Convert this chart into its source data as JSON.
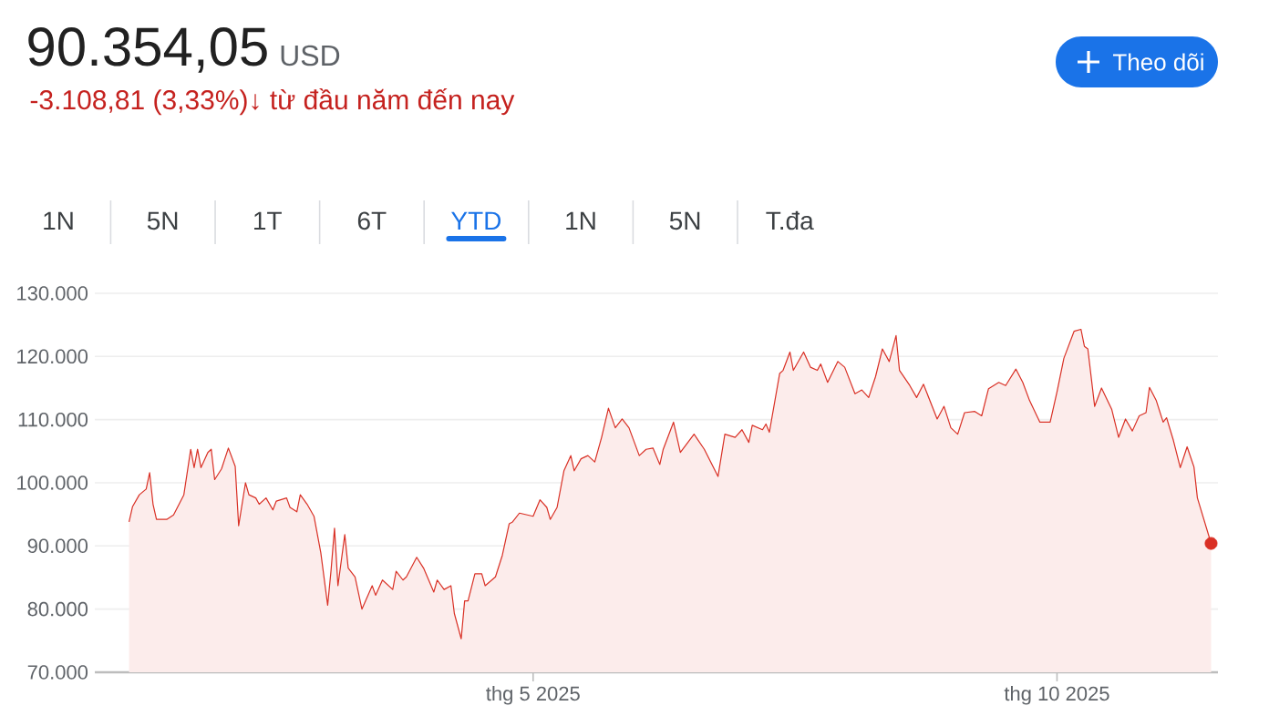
{
  "chart_data": {
    "type": "area",
    "title": "90.354,05",
    "subtitle": "USD",
    "annotations": [
      "-3.108,81 (3,33%)↓ từ đầu năm đến nay",
      "Theo dõi",
      "1N",
      "5N",
      "1T",
      "6T",
      "YTD",
      "1N",
      "5N",
      "T.đa"
    ],
    "xlim": [
      "2024-12-24",
      "2025-11-17"
    ],
    "xticks": [
      {
        "value": "2025-05-01",
        "label": "thg 5 2025"
      },
      {
        "value": "2025-10-01",
        "label": "thg 10 2025"
      }
    ],
    "ylim": [
      70000,
      130000
    ],
    "yticks": [
      {
        "value": 70000,
        "label": "70.000"
      },
      {
        "value": 80000,
        "label": "80.000"
      },
      {
        "value": 90000,
        "label": "90.000"
      },
      {
        "value": 100000,
        "label": "100.000"
      },
      {
        "value": 110000,
        "label": "110.000"
      },
      {
        "value": 120000,
        "label": "120.000"
      },
      {
        "value": 130000,
        "label": "130.000"
      }
    ],
    "grid": "y",
    "series": [
      {
        "color": "#d93025",
        "x": [
          "2025-01-03",
          "2025-01-04",
          "2025-01-06",
          "2025-01-08",
          "2025-01-09",
          "2025-01-10",
          "2025-01-11",
          "2025-01-14",
          "2025-01-16",
          "2025-01-19",
          "2025-01-21",
          "2025-01-22",
          "2025-01-23",
          "2025-01-24",
          "2025-01-26",
          "2025-01-27",
          "2025-01-28",
          "2025-01-30",
          "2025-02-01",
          "2025-02-03",
          "2025-02-04",
          "2025-02-06",
          "2025-02-07",
          "2025-02-09",
          "2025-02-10",
          "2025-02-12",
          "2025-02-14",
          "2025-02-15",
          "2025-02-18",
          "2025-02-19",
          "2025-02-21",
          "2025-02-22",
          "2025-02-24",
          "2025-02-26",
          "2025-02-28",
          "2025-03-02",
          "2025-03-03",
          "2025-03-04",
          "2025-03-05",
          "2025-03-07",
          "2025-03-08",
          "2025-03-10",
          "2025-03-12",
          "2025-03-15",
          "2025-03-16",
          "2025-03-18",
          "2025-03-21",
          "2025-03-22",
          "2025-03-24",
          "2025-03-25",
          "2025-03-28",
          "2025-03-30",
          "2025-04-02",
          "2025-04-03",
          "2025-04-05",
          "2025-04-07",
          "2025-04-08",
          "2025-04-10",
          "2025-04-11",
          "2025-04-12",
          "2025-04-14",
          "2025-04-16",
          "2025-04-17",
          "2025-04-20",
          "2025-04-22",
          "2025-04-24",
          "2025-04-25",
          "2025-04-27",
          "2025-05-01",
          "2025-05-03",
          "2025-05-05",
          "2025-05-06",
          "2025-05-08",
          "2025-05-10",
          "2025-05-12",
          "2025-05-13",
          "2025-05-15",
          "2025-05-17",
          "2025-05-19",
          "2025-05-21",
          "2025-05-23",
          "2025-05-25",
          "2025-05-27",
          "2025-05-29",
          "2025-06-01",
          "2025-06-03",
          "2025-06-05",
          "2025-06-07",
          "2025-06-08",
          "2025-06-11",
          "2025-06-13",
          "2025-06-17",
          "2025-06-20",
          "2025-06-24",
          "2025-06-26",
          "2025-06-29",
          "2025-07-01",
          "2025-07-03",
          "2025-07-04",
          "2025-07-07",
          "2025-07-08",
          "2025-07-09",
          "2025-07-12",
          "2025-07-13",
          "2025-07-15",
          "2025-07-16",
          "2025-07-19",
          "2025-07-21",
          "2025-07-23",
          "2025-07-24",
          "2025-07-26",
          "2025-07-29",
          "2025-07-31",
          "2025-08-03",
          "2025-08-05",
          "2025-08-07",
          "2025-08-09",
          "2025-08-11",
          "2025-08-13",
          "2025-08-15",
          "2025-08-16",
          "2025-08-19",
          "2025-08-21",
          "2025-08-23",
          "2025-08-27",
          "2025-08-29",
          "2025-08-31",
          "2025-09-02",
          "2025-09-04",
          "2025-09-07",
          "2025-09-09",
          "2025-09-11",
          "2025-09-14",
          "2025-09-16",
          "2025-09-19",
          "2025-09-21",
          "2025-09-23",
          "2025-09-26",
          "2025-09-29",
          "2025-10-01",
          "2025-10-03",
          "2025-10-06",
          "2025-10-08",
          "2025-10-09",
          "2025-10-10",
          "2025-10-12",
          "2025-10-14",
          "2025-10-17",
          "2025-10-19",
          "2025-10-21",
          "2025-10-23",
          "2025-10-25",
          "2025-10-27",
          "2025-10-28",
          "2025-10-30",
          "2025-11-01",
          "2025-11-02",
          "2025-11-04",
          "2025-11-06",
          "2025-11-08",
          "2025-11-10",
          "2025-11-11",
          "2025-11-15"
        ],
        "values": [
          93800,
          96200,
          98100,
          99000,
          101600,
          96600,
          94200,
          94200,
          94900,
          98100,
          105300,
          102400,
          105300,
          102400,
          104800,
          105300,
          100500,
          102200,
          105500,
          102600,
          93200,
          100000,
          98100,
          97600,
          96600,
          97600,
          95700,
          97100,
          97600,
          96100,
          95400,
          98100,
          96600,
          94700,
          88900,
          80600,
          86200,
          92800,
          83700,
          91800,
          86500,
          85100,
          80000,
          83700,
          82200,
          84600,
          83100,
          86000,
          84600,
          85100,
          88200,
          86500,
          82700,
          84600,
          83100,
          83700,
          79300,
          75300,
          81300,
          81300,
          85600,
          85600,
          83700,
          85100,
          88500,
          93500,
          93800,
          95200,
          94700,
          97300,
          96100,
          94200,
          96100,
          101900,
          104300,
          101900,
          103800,
          104300,
          103300,
          107200,
          111800,
          108700,
          110100,
          108700,
          104300,
          105300,
          105500,
          102900,
          105300,
          109600,
          104800,
          107700,
          105300,
          101000,
          107700,
          107200,
          108400,
          106400,
          109100,
          108400,
          109300,
          108000,
          117300,
          117800,
          120700,
          117800,
          120700,
          118300,
          117800,
          118800,
          115900,
          119200,
          118300,
          114100,
          114700,
          113500,
          116800,
          121200,
          119200,
          123300,
          117800,
          115400,
          113500,
          115600,
          110100,
          112100,
          108700,
          107700,
          111100,
          111300,
          110600,
          114900,
          115900,
          115400,
          118000,
          115900,
          113000,
          109600,
          109600,
          114400,
          119700,
          124000,
          124300,
          121600,
          121200,
          112100,
          115000,
          111600,
          107200,
          110100,
          108200,
          110600,
          111100,
          115100,
          113000,
          109600,
          110300,
          106700,
          102400,
          105700,
          102500,
          97600,
          90400
        ]
      },
      {
        "type": "scatter",
        "color": "#d93025",
        "marker": "circle",
        "x": [
          "2025-11-15"
        ],
        "values": [
          90400
        ]
      }
    ]
  }
}
